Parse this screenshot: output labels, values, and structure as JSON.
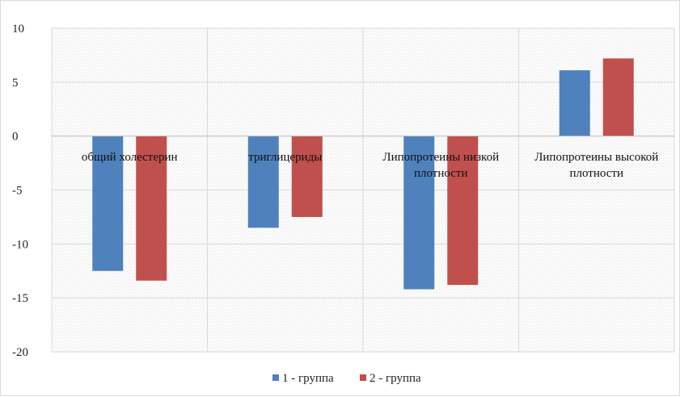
{
  "chart_data": {
    "type": "bar",
    "categories": [
      "общий холестерин",
      "триглицериды",
      "Липопротеины низкой плотности",
      "Липопротеины высокой плотности"
    ],
    "category_label_lines": [
      [
        "общий холестерин"
      ],
      [
        "триглицериды"
      ],
      [
        "Липопротеины низкой",
        "плотности"
      ],
      [
        "Липопротеины высокой",
        "плотности"
      ]
    ],
    "series": [
      {
        "name": "1 - группа",
        "color": "#4f81bd",
        "values": [
          -12.5,
          -8.5,
          -14.2,
          6.1
        ]
      },
      {
        "name": "2 - группа",
        "color": "#c0504d",
        "values": [
          -13.4,
          -7.5,
          -13.8,
          7.2
        ]
      }
    ],
    "title": "",
    "xlabel": "",
    "ylabel": "",
    "ylim": [
      -20,
      10
    ],
    "yticks": [
      "10",
      "5",
      "0",
      "-5",
      "-10",
      "-15",
      "-20"
    ],
    "grid": true,
    "legend_position": "bottom"
  }
}
